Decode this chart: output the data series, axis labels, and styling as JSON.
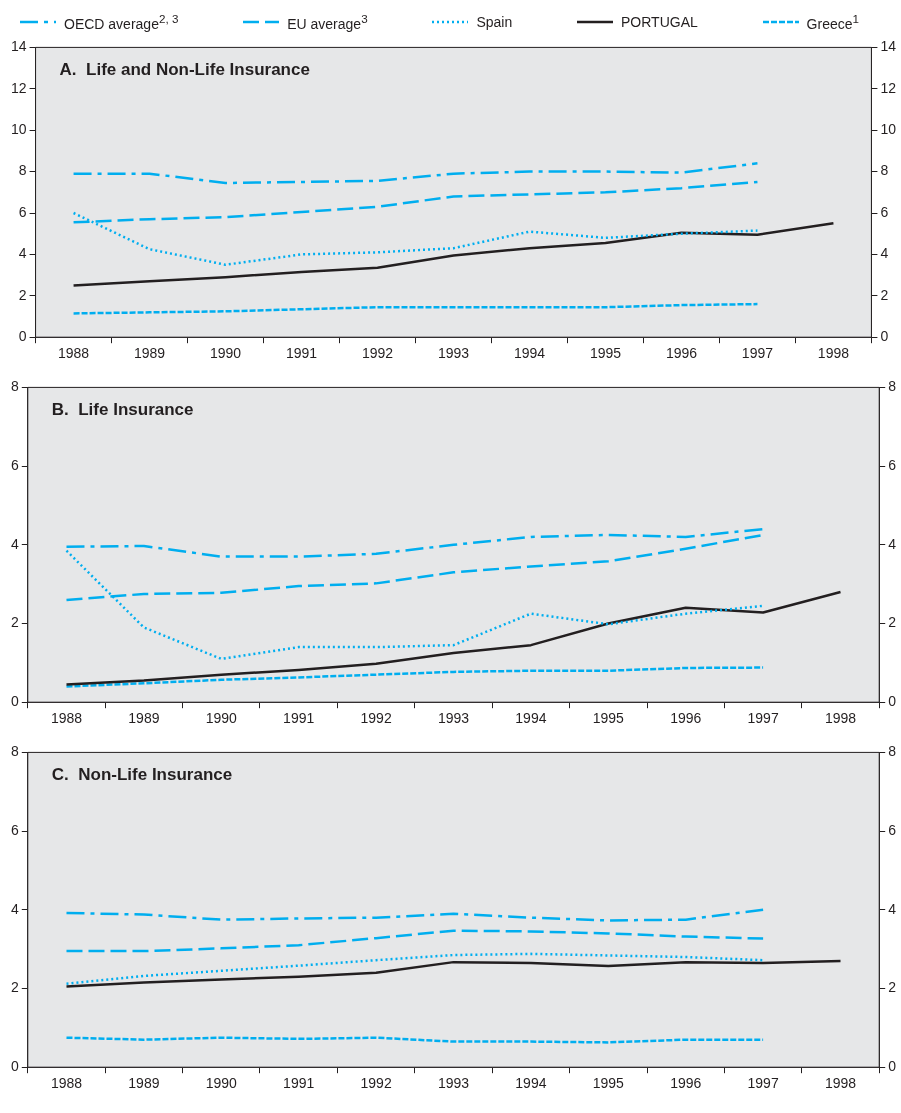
{
  "chart_data": [
    {
      "type": "line",
      "title": "A.  Life and Non-Life Insurance",
      "categories": [
        "1988",
        "1989",
        "1990",
        "1991",
        "1992",
        "1993",
        "1994",
        "1995",
        "1996",
        "1997",
        "1998"
      ],
      "ylim": [
        0,
        14
      ],
      "yticks": [
        0,
        2,
        4,
        6,
        8,
        10,
        12,
        14
      ],
      "y2lim": [
        0,
        14
      ],
      "y2ticks": [
        0,
        2,
        4,
        6,
        8,
        10,
        12,
        14
      ],
      "grid": false,
      "legend": "top",
      "series": [
        {
          "name": "OECD average$^{2, 3}$",
          "color": "#00aeef",
          "line_style": "dash-dot",
          "values": [
            7.9,
            7.9,
            7.45,
            7.5,
            7.55,
            7.9,
            8.0,
            8.0,
            7.95,
            8.4,
            null
          ]
        },
        {
          "name": "EU average$^{3}$",
          "color": "#00aeef",
          "line_style": "long-dashed",
          "values": [
            5.55,
            5.7,
            5.8,
            6.05,
            6.3,
            6.8,
            6.9,
            7.0,
            7.2,
            7.5,
            null
          ]
        },
        {
          "name": "Spain",
          "color": "#00aeef",
          "line_style": "dotted",
          "values": [
            6.0,
            4.25,
            3.5,
            4.0,
            4.1,
            4.3,
            5.1,
            4.8,
            5.0,
            5.15,
            null
          ]
        },
        {
          "name": "PORTUGAL",
          "color": "#231f20",
          "line_style": "solid",
          "values": [
            2.5,
            2.7,
            2.9,
            3.15,
            3.35,
            3.95,
            4.3,
            4.55,
            5.05,
            4.95,
            5.5
          ]
        },
        {
          "name": "Greece$^{1}$",
          "color": "#00aeef",
          "line_style": "dashed",
          "values": [
            1.15,
            1.2,
            1.25,
            1.35,
            1.45,
            1.45,
            1.45,
            1.45,
            1.55,
            1.6,
            null
          ]
        }
      ]
    },
    {
      "type": "line",
      "title": "B.  Life Insurance",
      "categories": [
        "1988",
        "1989",
        "1990",
        "1991",
        "1992",
        "1993",
        "1994",
        "1995",
        "1996",
        "1997",
        "1998"
      ],
      "ylim": [
        0,
        8
      ],
      "yticks": [
        0,
        2,
        4,
        6,
        8
      ],
      "y2lim": [
        0,
        8
      ],
      "y2ticks": [
        0,
        2,
        4,
        6,
        8
      ],
      "grid": false,
      "legend": false,
      "series": [
        {
          "color": "#00aeef",
          "line_style": "dash-dot",
          "values": [
            3.95,
            3.97,
            3.7,
            3.7,
            3.77,
            4.0,
            4.2,
            4.25,
            4.2,
            4.4,
            null
          ]
        },
        {
          "color": "#00aeef",
          "line_style": "long-dashed",
          "values": [
            2.6,
            2.75,
            2.78,
            2.95,
            3.02,
            3.3,
            3.45,
            3.58,
            3.9,
            4.25,
            null
          ]
        },
        {
          "color": "#00aeef",
          "line_style": "dotted",
          "values": [
            3.85,
            1.9,
            1.1,
            1.4,
            1.4,
            1.45,
            2.25,
            1.98,
            2.25,
            2.45,
            null
          ]
        },
        {
          "color": "#231f20",
          "line_style": "solid",
          "values": [
            0.45,
            0.55,
            0.7,
            0.82,
            0.98,
            1.25,
            1.45,
            2.0,
            2.4,
            2.28,
            2.8
          ]
        },
        {
          "color": "#00aeef",
          "line_style": "dashed",
          "values": [
            0.4,
            0.48,
            0.57,
            0.63,
            0.7,
            0.77,
            0.8,
            0.8,
            0.87,
            0.88,
            null
          ]
        }
      ]
    },
    {
      "type": "line",
      "title": "C.  Non-Life Insurance",
      "categories": [
        "1988",
        "1989",
        "1990",
        "1991",
        "1992",
        "1993",
        "1994",
        "1995",
        "1996",
        "1997",
        "1998"
      ],
      "ylim": [
        0,
        8
      ],
      "yticks": [
        0,
        2,
        4,
        6,
        8
      ],
      "y2lim": [
        0,
        8
      ],
      "y2ticks": [
        0,
        2,
        4,
        6,
        8
      ],
      "grid": false,
      "legend": false,
      "series": [
        {
          "color": "#00aeef",
          "line_style": "dash-dot",
          "values": [
            3.92,
            3.88,
            3.75,
            3.78,
            3.8,
            3.9,
            3.8,
            3.73,
            3.75,
            4.0,
            null
          ]
        },
        {
          "color": "#00aeef",
          "line_style": "long-dashed",
          "values": [
            2.95,
            2.95,
            3.02,
            3.1,
            3.28,
            3.47,
            3.45,
            3.4,
            3.32,
            3.27,
            null
          ]
        },
        {
          "color": "#00aeef",
          "line_style": "dotted",
          "values": [
            2.12,
            2.32,
            2.45,
            2.58,
            2.72,
            2.85,
            2.88,
            2.84,
            2.8,
            2.72,
            null
          ]
        },
        {
          "color": "#231f20",
          "line_style": "solid",
          "values": [
            2.05,
            2.15,
            2.23,
            2.3,
            2.4,
            2.67,
            2.65,
            2.57,
            2.67,
            2.65,
            2.7
          ]
        },
        {
          "color": "#00aeef",
          "line_style": "dashed",
          "values": [
            0.75,
            0.7,
            0.75,
            0.72,
            0.75,
            0.65,
            0.65,
            0.63,
            0.7,
            0.7,
            null
          ]
        }
      ]
    }
  ]
}
